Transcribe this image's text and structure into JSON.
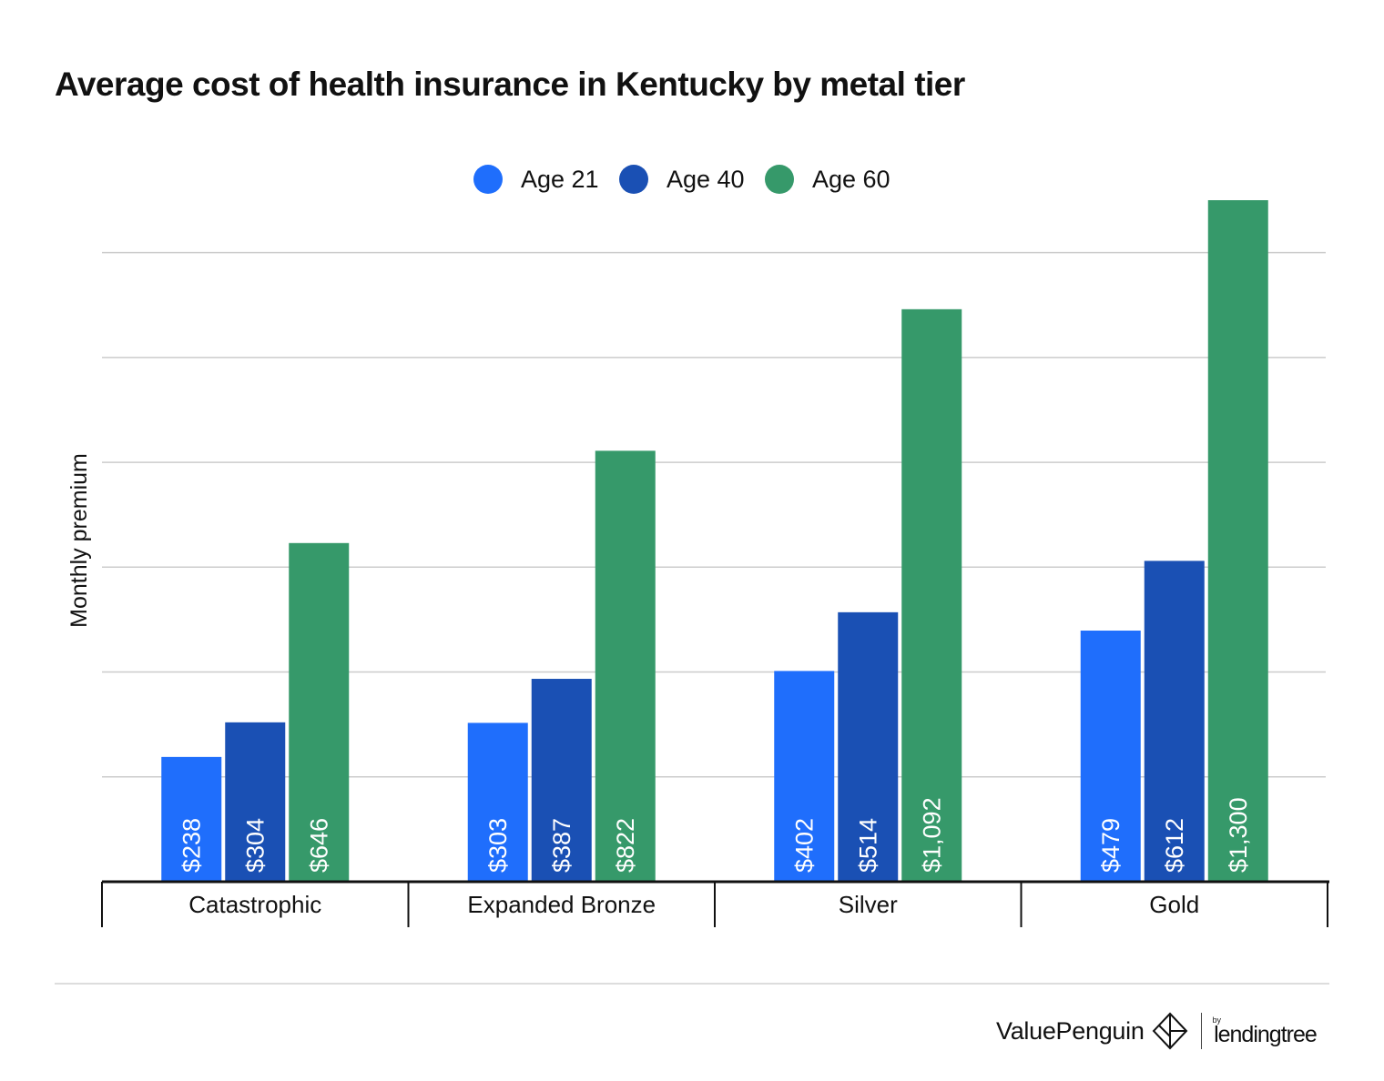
{
  "chart_data": {
    "type": "bar",
    "title": "Average cost of health insurance in Kentucky by metal tier",
    "xlabel": "",
    "ylabel": "Monthly premium",
    "categories": [
      "Catastrophic",
      "Expanded Bronze",
      "Silver",
      "Gold"
    ],
    "series": [
      {
        "name": "Age 21",
        "color": "#1f6efc",
        "values": [
          238,
          303,
          402,
          479
        ],
        "labels": [
          "$238",
          "$303",
          "$402",
          "$479"
        ]
      },
      {
        "name": "Age 40",
        "color": "#1a50b4",
        "values": [
          304,
          387,
          514,
          612
        ],
        "labels": [
          "$304",
          "$387",
          "$514",
          "$612"
        ]
      },
      {
        "name": "Age 60",
        "color": "#36996a",
        "values": [
          646,
          822,
          1092,
          1300
        ],
        "labels": [
          "$646",
          "$822",
          "$1,092",
          "$1,300"
        ]
      }
    ],
    "ylim": [
      0,
      1300
    ],
    "gridlines": [
      200,
      400,
      600,
      800,
      1000,
      1200
    ],
    "grid": true,
    "legend_position": "top-center",
    "y_tick_labels_shown": false
  },
  "footer": {
    "brand": "ValuePenguin",
    "by_text": "by",
    "partner": "lendingtree"
  }
}
